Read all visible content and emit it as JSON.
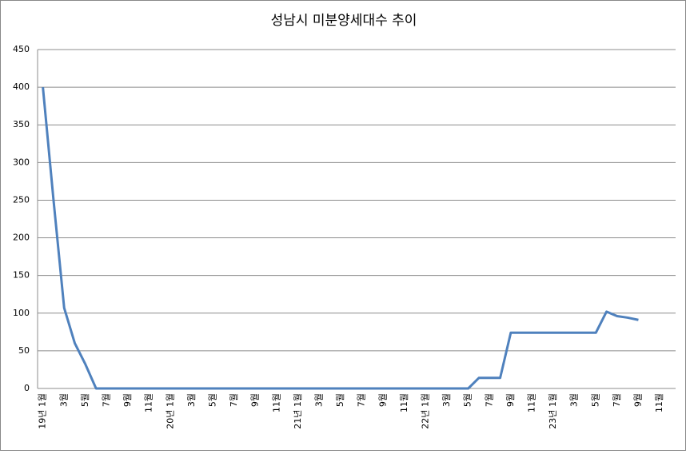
{
  "chart_data": {
    "type": "line",
    "title": "성남시 미분양세대수 추이",
    "categories": [
      "19년 1월",
      null,
      "3월",
      null,
      "5월",
      null,
      "7월",
      null,
      "9월",
      null,
      "11월",
      null,
      "20년 1월",
      null,
      "3월",
      null,
      "5월",
      null,
      "7월",
      null,
      "9월",
      null,
      "11월",
      null,
      "21년 1월",
      null,
      "3월",
      null,
      "5월",
      null,
      "7월",
      null,
      "9월",
      null,
      "11월",
      null,
      "22년 1월",
      null,
      "3월",
      null,
      "5월",
      null,
      "7월",
      null,
      "9월",
      null,
      "11월",
      null,
      "23년 1월",
      null,
      "3월",
      null,
      "5월",
      null,
      "7월",
      null,
      "9월",
      null,
      "11월",
      null
    ],
    "values": [
      400,
      250,
      107,
      60,
      32,
      0,
      0,
      0,
      0,
      0,
      0,
      0,
      0,
      0,
      0,
      0,
      0,
      0,
      0,
      0,
      0,
      0,
      0,
      0,
      0,
      0,
      0,
      0,
      0,
      0,
      0,
      0,
      0,
      0,
      0,
      0,
      0,
      0,
      0,
      0,
      0,
      14,
      14,
      14,
      74,
      74,
      74,
      74,
      74,
      74,
      74,
      74,
      74,
      102,
      96,
      94,
      91,
      null,
      null,
      null
    ],
    "color": "#4f81bd",
    "ylim": [
      0,
      450
    ],
    "yticks": [
      0,
      50,
      100,
      150,
      200,
      250,
      300,
      350,
      400,
      450
    ],
    "grid": true
  }
}
